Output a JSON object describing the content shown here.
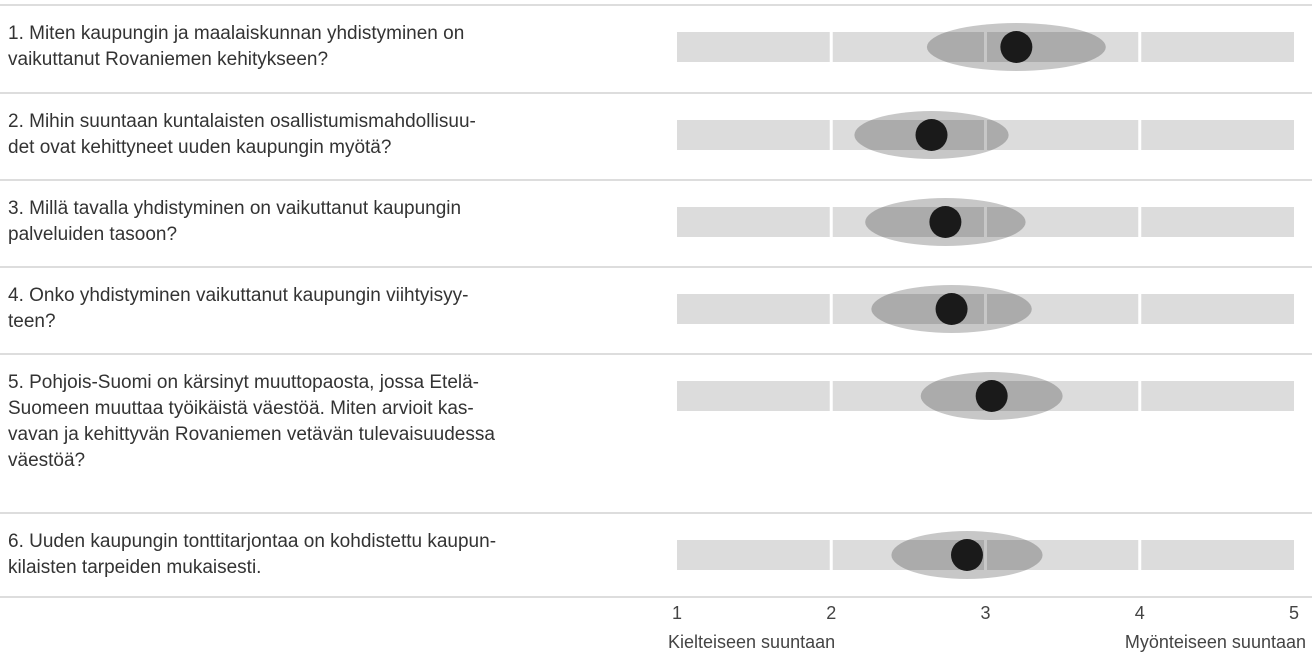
{
  "chart_data": {
    "type": "dotplot",
    "categories": [
      "1. Miten kaupungin ja maalaiskunnan yhdistyminen on\nvaikuttanut Rovaniemen kehitykseen?",
      "2. Mihin suuntaan kuntalaisten osallistumismahdollisuu-\ndet ovat kehittyneet uuden kaupungin myötä?",
      "3. Millä tavalla yhdistyminen on vaikuttanut kaupungin\npalveluiden tasoon?",
      "4. Onko yhdistyminen vaikuttanut kaupungin viihtyisyy-\nteen?",
      "5. Pohjois-Suomi on kärsinyt muuttopaosta, jossa Etelä-\nSuomeen muuttaa työikäistä väestöä. Miten arvioit kas-\nvavan ja kehittyvän Rovaniemen vetävän tulevaisuudessa\nväestöä?",
      "6. Uuden kaupungin tonttitarjontaa on kohdistettu kaupun-\nkilaisten tarpeiden mukaisesti."
    ],
    "values": [
      3.2,
      2.65,
      2.74,
      2.78,
      3.04,
      2.88
    ],
    "spread": [
      0.58,
      0.5,
      0.52,
      0.52,
      0.46,
      0.49
    ],
    "xlim": [
      1,
      5
    ],
    "xticks": [
      1,
      2,
      3,
      4,
      5
    ],
    "grid": true,
    "xlabel_left": "Kielteiseen suuntaan",
    "xlabel_right": "Myönteiseen suuntaan",
    "dot_color": "#1a1a1a",
    "band_color": "#dcdcdc",
    "spread_color": "rgba(0,0,0,0.22)"
  }
}
